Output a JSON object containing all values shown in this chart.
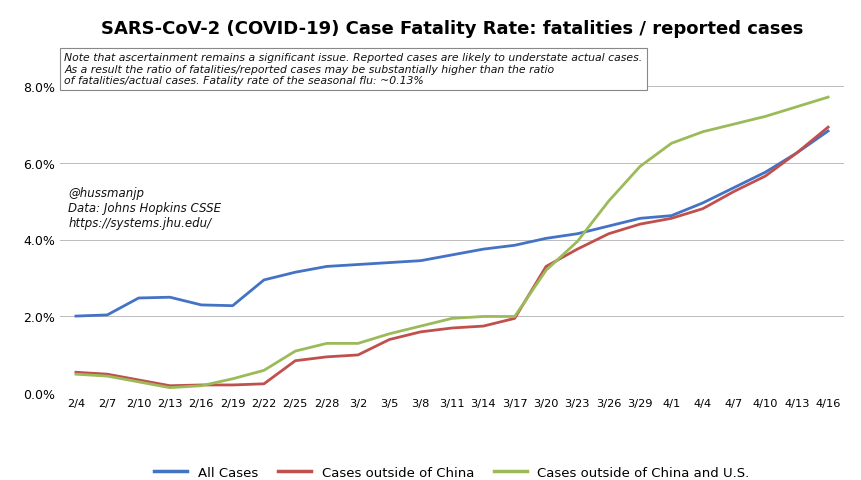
{
  "title": "SARS-CoV-2 (COVID-19) Case Fatality Rate: fatalities / reported cases",
  "note_text": "Note that ascertainment remains a significant issue. Reported cases are likely to understate actual cases.\nAs a result the ratio of fatalities/reported cases may be substantially higher than the ratio\nof fatalities/actual cases. Fatality rate of the seasonal flu: ~0.13%",
  "credit_text": "@hussmanjp\nData: Johns Hopkins CSSE\nhttps://systems.jhu.edu/",
  "ylim": [
    0.0,
    0.09
  ],
  "yticks": [
    0.0,
    0.02,
    0.04,
    0.06,
    0.08
  ],
  "ytick_labels": [
    "0.0%",
    "2.0%",
    "4.0%",
    "6.0%",
    "8.0%"
  ],
  "x_labels": [
    "2/4",
    "2/7",
    "2/10",
    "2/13",
    "2/16",
    "2/19",
    "2/22",
    "2/25",
    "2/28",
    "3/2",
    "3/5",
    "3/8",
    "3/11",
    "3/14",
    "3/17",
    "3/20",
    "3/23",
    "3/26",
    "3/29",
    "4/1",
    "4/4",
    "4/7",
    "4/10",
    "4/13",
    "4/16"
  ],
  "color_all": "#4472C4",
  "color_china": "#C0504D",
  "color_nonus": "#9BBB59",
  "line_width": 2.0,
  "legend_labels": [
    "All Cases",
    "Cases outside of China",
    "Cases outside of China and U.S."
  ],
  "background_color": "#FFFFFF",
  "all_cases": [
    0.0201,
    0.0204,
    0.0248,
    0.025,
    0.023,
    0.0228,
    0.0295,
    0.0315,
    0.033,
    0.0335,
    0.034,
    0.0345,
    0.036,
    0.0375,
    0.0385,
    0.0403,
    0.0415,
    0.0435,
    0.0455,
    0.0462,
    0.0495,
    0.0535,
    0.0575,
    0.0625,
    0.0682
  ],
  "cases_outside_china": [
    0.0055,
    0.005,
    0.0035,
    0.002,
    0.0022,
    0.0022,
    0.0025,
    0.0085,
    0.0095,
    0.01,
    0.014,
    0.016,
    0.017,
    0.0175,
    0.0195,
    0.033,
    0.0375,
    0.0415,
    0.044,
    0.0455,
    0.048,
    0.0525,
    0.0565,
    0.0625,
    0.0692
  ],
  "cases_outside_china_us": [
    0.005,
    0.0045,
    0.003,
    0.0015,
    0.002,
    0.0038,
    0.006,
    0.011,
    0.013,
    0.013,
    0.0155,
    0.0175,
    0.0195,
    0.02,
    0.02,
    0.032,
    0.0395,
    0.05,
    0.059,
    0.065,
    0.068,
    0.07,
    0.072,
    0.0745,
    0.077
  ]
}
